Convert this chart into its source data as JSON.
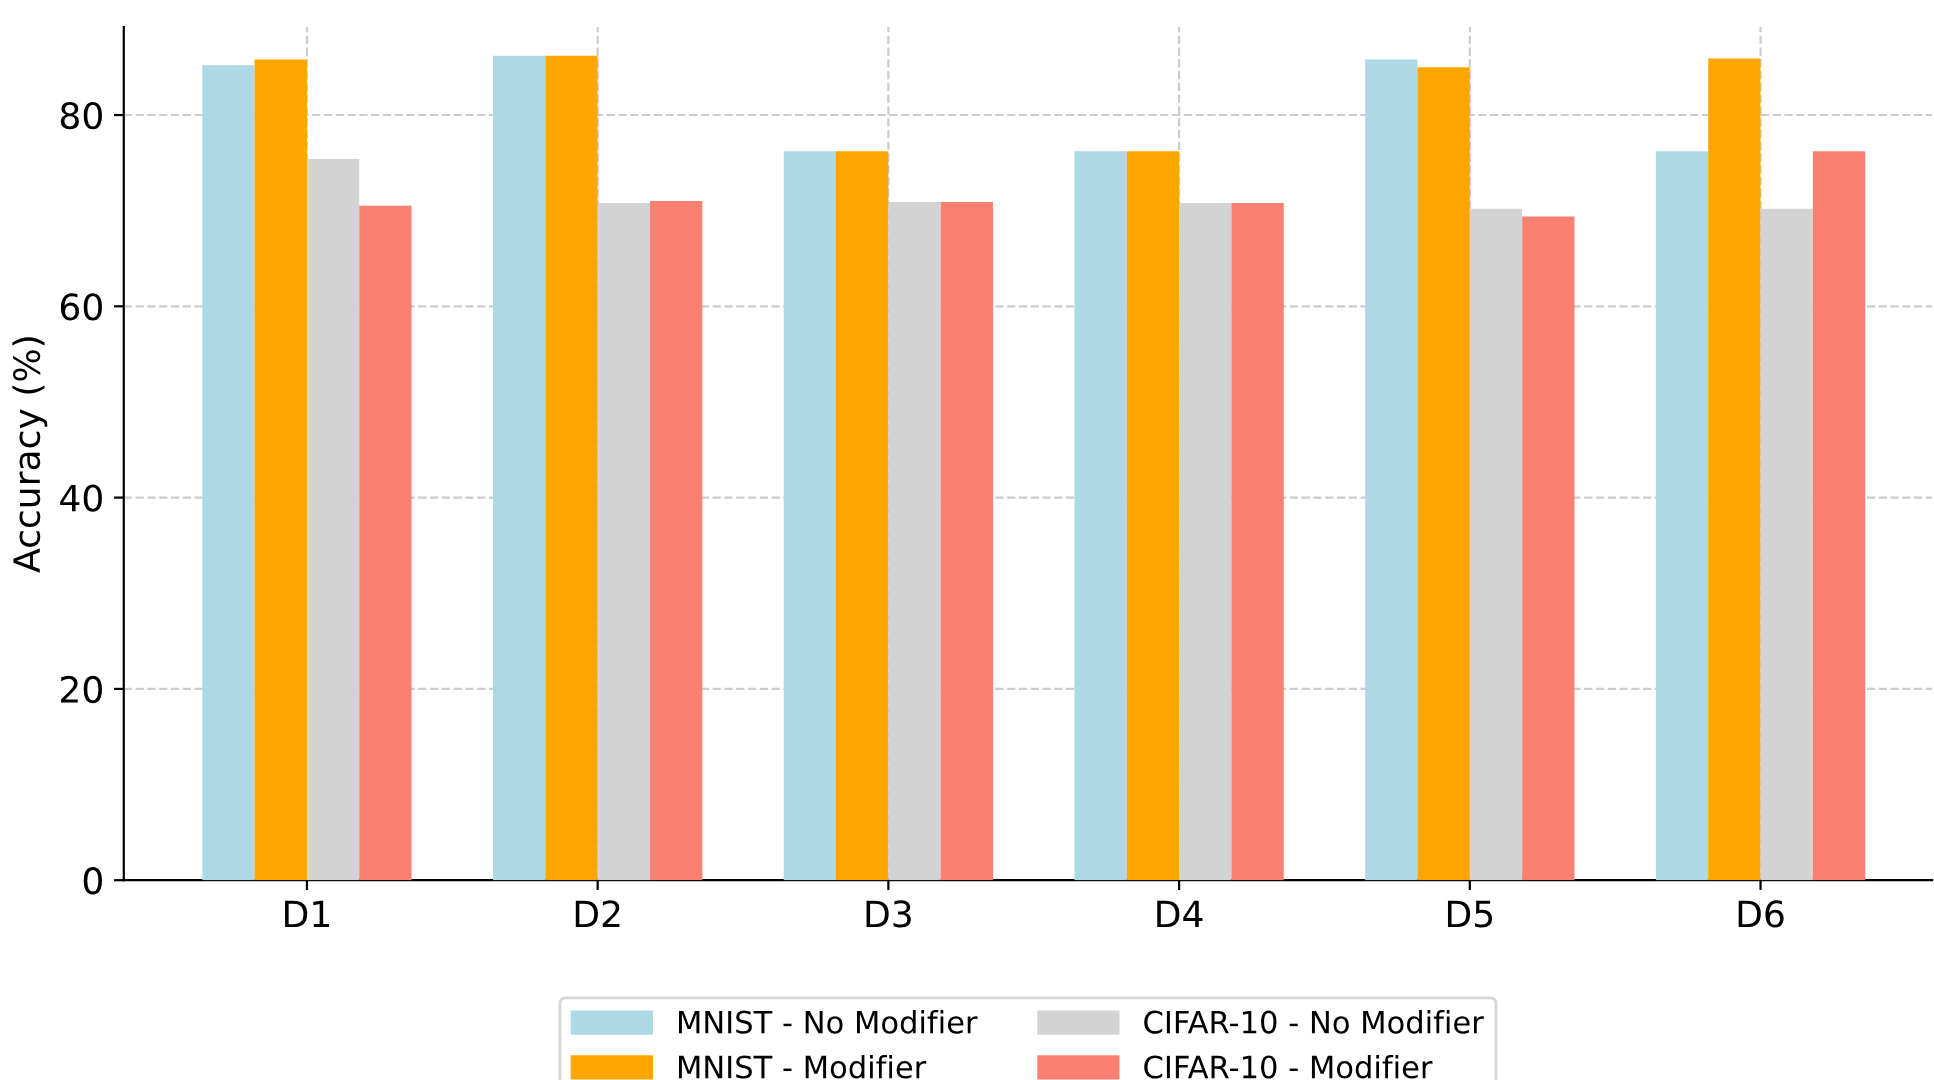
{
  "chart_data": {
    "type": "bar",
    "ylabel": "Accuracy (%)",
    "categories": [
      "D1",
      "D2",
      "D3",
      "D4",
      "D5",
      "D6"
    ],
    "series": [
      {
        "name": "MNIST - No Modifier",
        "color": "#add8e6",
        "values": [
          85.2,
          86.2,
          76.2,
          76.2,
          85.8,
          76.2
        ]
      },
      {
        "name": "MNIST - Modifier",
        "color": "#ffa500",
        "values": [
          85.8,
          86.2,
          76.2,
          76.2,
          85.0,
          85.9
        ]
      },
      {
        "name": "CIFAR-10 - No Modifier",
        "color": "#d3d3d3",
        "values": [
          75.4,
          70.8,
          70.9,
          70.8,
          70.2,
          70.2
        ]
      },
      {
        "name": "CIFAR-10 - Modifier",
        "color": "#fa8072",
        "values": [
          70.5,
          71.0,
          70.9,
          70.8,
          69.4,
          76.2
        ]
      }
    ],
    "ylim": [
      0,
      89.2
    ],
    "yticks": [
      0,
      20,
      40,
      60,
      80
    ],
    "grid": true,
    "legend": "bottom"
  }
}
